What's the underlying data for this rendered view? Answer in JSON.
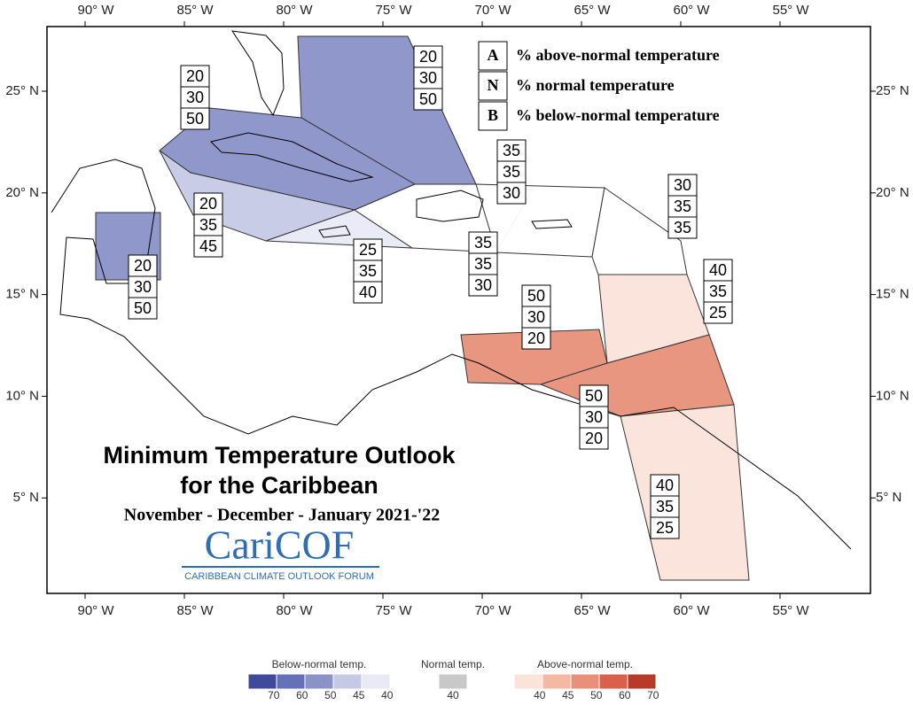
{
  "axes": {
    "longitudes": [
      "90° W",
      "85° W",
      "80° W",
      "75° W",
      "70° W",
      "65° W",
      "60° W",
      "55° W"
    ],
    "latitudes": [
      "25° N",
      "20° N",
      "15° N",
      "10° N",
      "5° N"
    ]
  },
  "legend": {
    "items": [
      {
        "key": "A",
        "text": "% above-normal temperature"
      },
      {
        "key": "N",
        "text": "% normal temperature"
      },
      {
        "key": "B",
        "text": "% below-normal temperature"
      }
    ]
  },
  "title": {
    "line1": "Minimum Temperature Outlook",
    "line2": "for the Caribbean",
    "period": "November - December - January  2021-'22",
    "logo": "CariCOF",
    "logo_subtitle": "CARIBBEAN CLIMATE OUTLOOK FORUM"
  },
  "regions": [
    {
      "color": "#8a92c8",
      "values": [
        20,
        30,
        50
      ]
    },
    {
      "color": "#8a92c8",
      "values": [
        20,
        30,
        50
      ]
    },
    {
      "color": "#c5c9e6",
      "values": [
        20,
        35,
        45
      ]
    },
    {
      "color": "#e8eaf6",
      "values": [
        25,
        35,
        40
      ]
    },
    {
      "color": "#8a92c8",
      "values": [
        20,
        30,
        50
      ]
    },
    {
      "color": "#ffffff",
      "values": [
        35,
        35,
        30
      ]
    },
    {
      "color": "#ffffff",
      "values": [
        35,
        35,
        30
      ]
    },
    {
      "color": "#ffffff",
      "values": [
        30,
        35,
        35
      ]
    },
    {
      "color": "#fbe3da",
      "values": [
        40,
        35,
        25
      ]
    },
    {
      "color": "#e8907a",
      "values": [
        50,
        30,
        20
      ]
    },
    {
      "color": "#e8907a",
      "values": [
        50,
        30,
        20
      ]
    },
    {
      "color": "#fbe3da",
      "values": [
        40,
        35,
        25
      ]
    }
  ],
  "colorbar": [
    {
      "title": "Below-normal temp.",
      "colors": [
        "#3f4a9a",
        "#6470b7",
        "#8a92c8",
        "#c5c9e6",
        "#e8eaf6"
      ],
      "ticks": [
        70,
        60,
        50,
        45,
        40
      ]
    },
    {
      "title": "Normal temp.",
      "colors": [
        "#c8c8c8"
      ],
      "ticks": [
        40
      ]
    },
    {
      "title": "Above-normal temp.",
      "colors": [
        "#fbe3da",
        "#f4b8a3",
        "#e8907a",
        "#d9604a",
        "#b83a28"
      ],
      "ticks": [
        40,
        45,
        50,
        60,
        70
      ]
    }
  ]
}
